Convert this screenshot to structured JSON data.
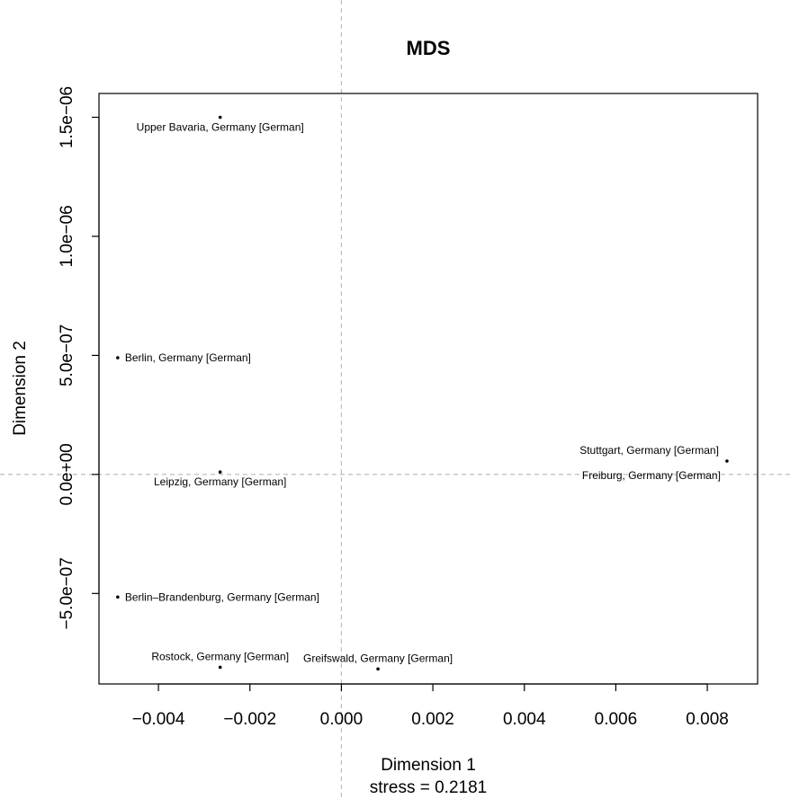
{
  "chart_data": {
    "type": "scatter",
    "title": "MDS",
    "xlabel": "Dimension 1",
    "ylabel": "Dimension 2",
    "subtitle": "stress = 0.2181",
    "xlim": [
      -0.0053,
      0.0091
    ],
    "ylim": [
      -8.8e-07,
      1.6e-06
    ],
    "x_ticks": [
      {
        "value": -0.004,
        "label": "−0.004"
      },
      {
        "value": -0.002,
        "label": "−0.002"
      },
      {
        "value": 0.0,
        "label": "0.000"
      },
      {
        "value": 0.002,
        "label": "0.002"
      },
      {
        "value": 0.004,
        "label": "0.004"
      },
      {
        "value": 0.006,
        "label": "0.006"
      },
      {
        "value": 0.008,
        "label": "0.008"
      }
    ],
    "y_ticks": [
      {
        "value": -5e-07,
        "label": "−5.0e−07"
      },
      {
        "value": 0.0,
        "label": "0.0e+00"
      },
      {
        "value": 5e-07,
        "label": "5.0e−07"
      },
      {
        "value": 1e-06,
        "label": "1.0e−06"
      },
      {
        "value": 1.5e-06,
        "label": "1.5e−06"
      }
    ],
    "reference_lines": {
      "x": 0,
      "y": 0,
      "style": "dashed",
      "color": "#bdbdbd"
    },
    "grid": false,
    "points": [
      {
        "label": "Upper Bavaria, Germany [German]",
        "x": -0.00265,
        "y": 1.5e-06,
        "label_pos": "below"
      },
      {
        "label": "Berlin, Germany [German]",
        "x": -0.00489,
        "y": 4.9e-07,
        "label_pos": "right"
      },
      {
        "label": "Leipzig, Germany [German]",
        "x": -0.00265,
        "y": 1e-08,
        "label_pos": "below"
      },
      {
        "label": "Stuttgart, Germany [German]",
        "x": 0.00843,
        "y": 5.6e-08,
        "label_pos": "above-left"
      },
      {
        "label": "Freiburg, Germany [German]",
        "x": 0.00843,
        "y": 5.6e-08,
        "label_pos": "below-left"
      },
      {
        "label": "Berlin–Brandenburg, Germany [German]",
        "x": -0.00489,
        "y": -5.15e-07,
        "label_pos": "right"
      },
      {
        "label": "Rostock, Germany [German]",
        "x": -0.00265,
        "y": -8.1e-07,
        "label_pos": "above"
      },
      {
        "label": "Greifswald, Germany [German]",
        "x": 0.0008,
        "y": -8.17e-07,
        "label_pos": "above"
      }
    ]
  }
}
